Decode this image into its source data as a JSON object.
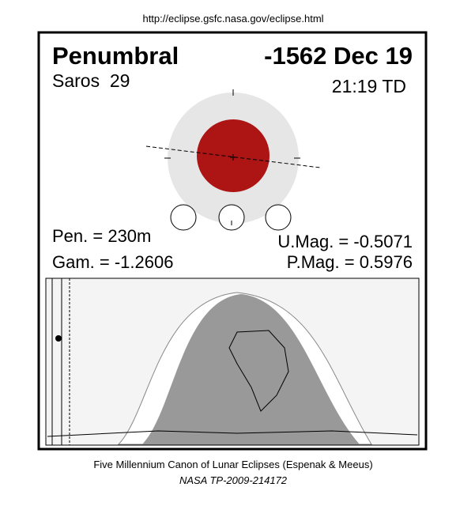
{
  "header": {
    "url": "http://eclipse.gsfc.nasa.gov/eclipse.html"
  },
  "eclipse": {
    "type": "Penumbral",
    "date": "-1562 Dec 19",
    "saros": "Saros  29",
    "time": "21:19 TD",
    "penumbral_duration": "Pen. = 230m",
    "gamma": "Gam. = -1.2606",
    "umbral_magnitude": "U.Mag. = -0.5071",
    "penumbral_magnitude": "P.Mag. = 0.5976"
  },
  "footer": {
    "line1": "Five Millennium Canon of Lunar Eclipses (Espenak & Meeus)",
    "line2": "NASA TP-2009-214172"
  }
}
